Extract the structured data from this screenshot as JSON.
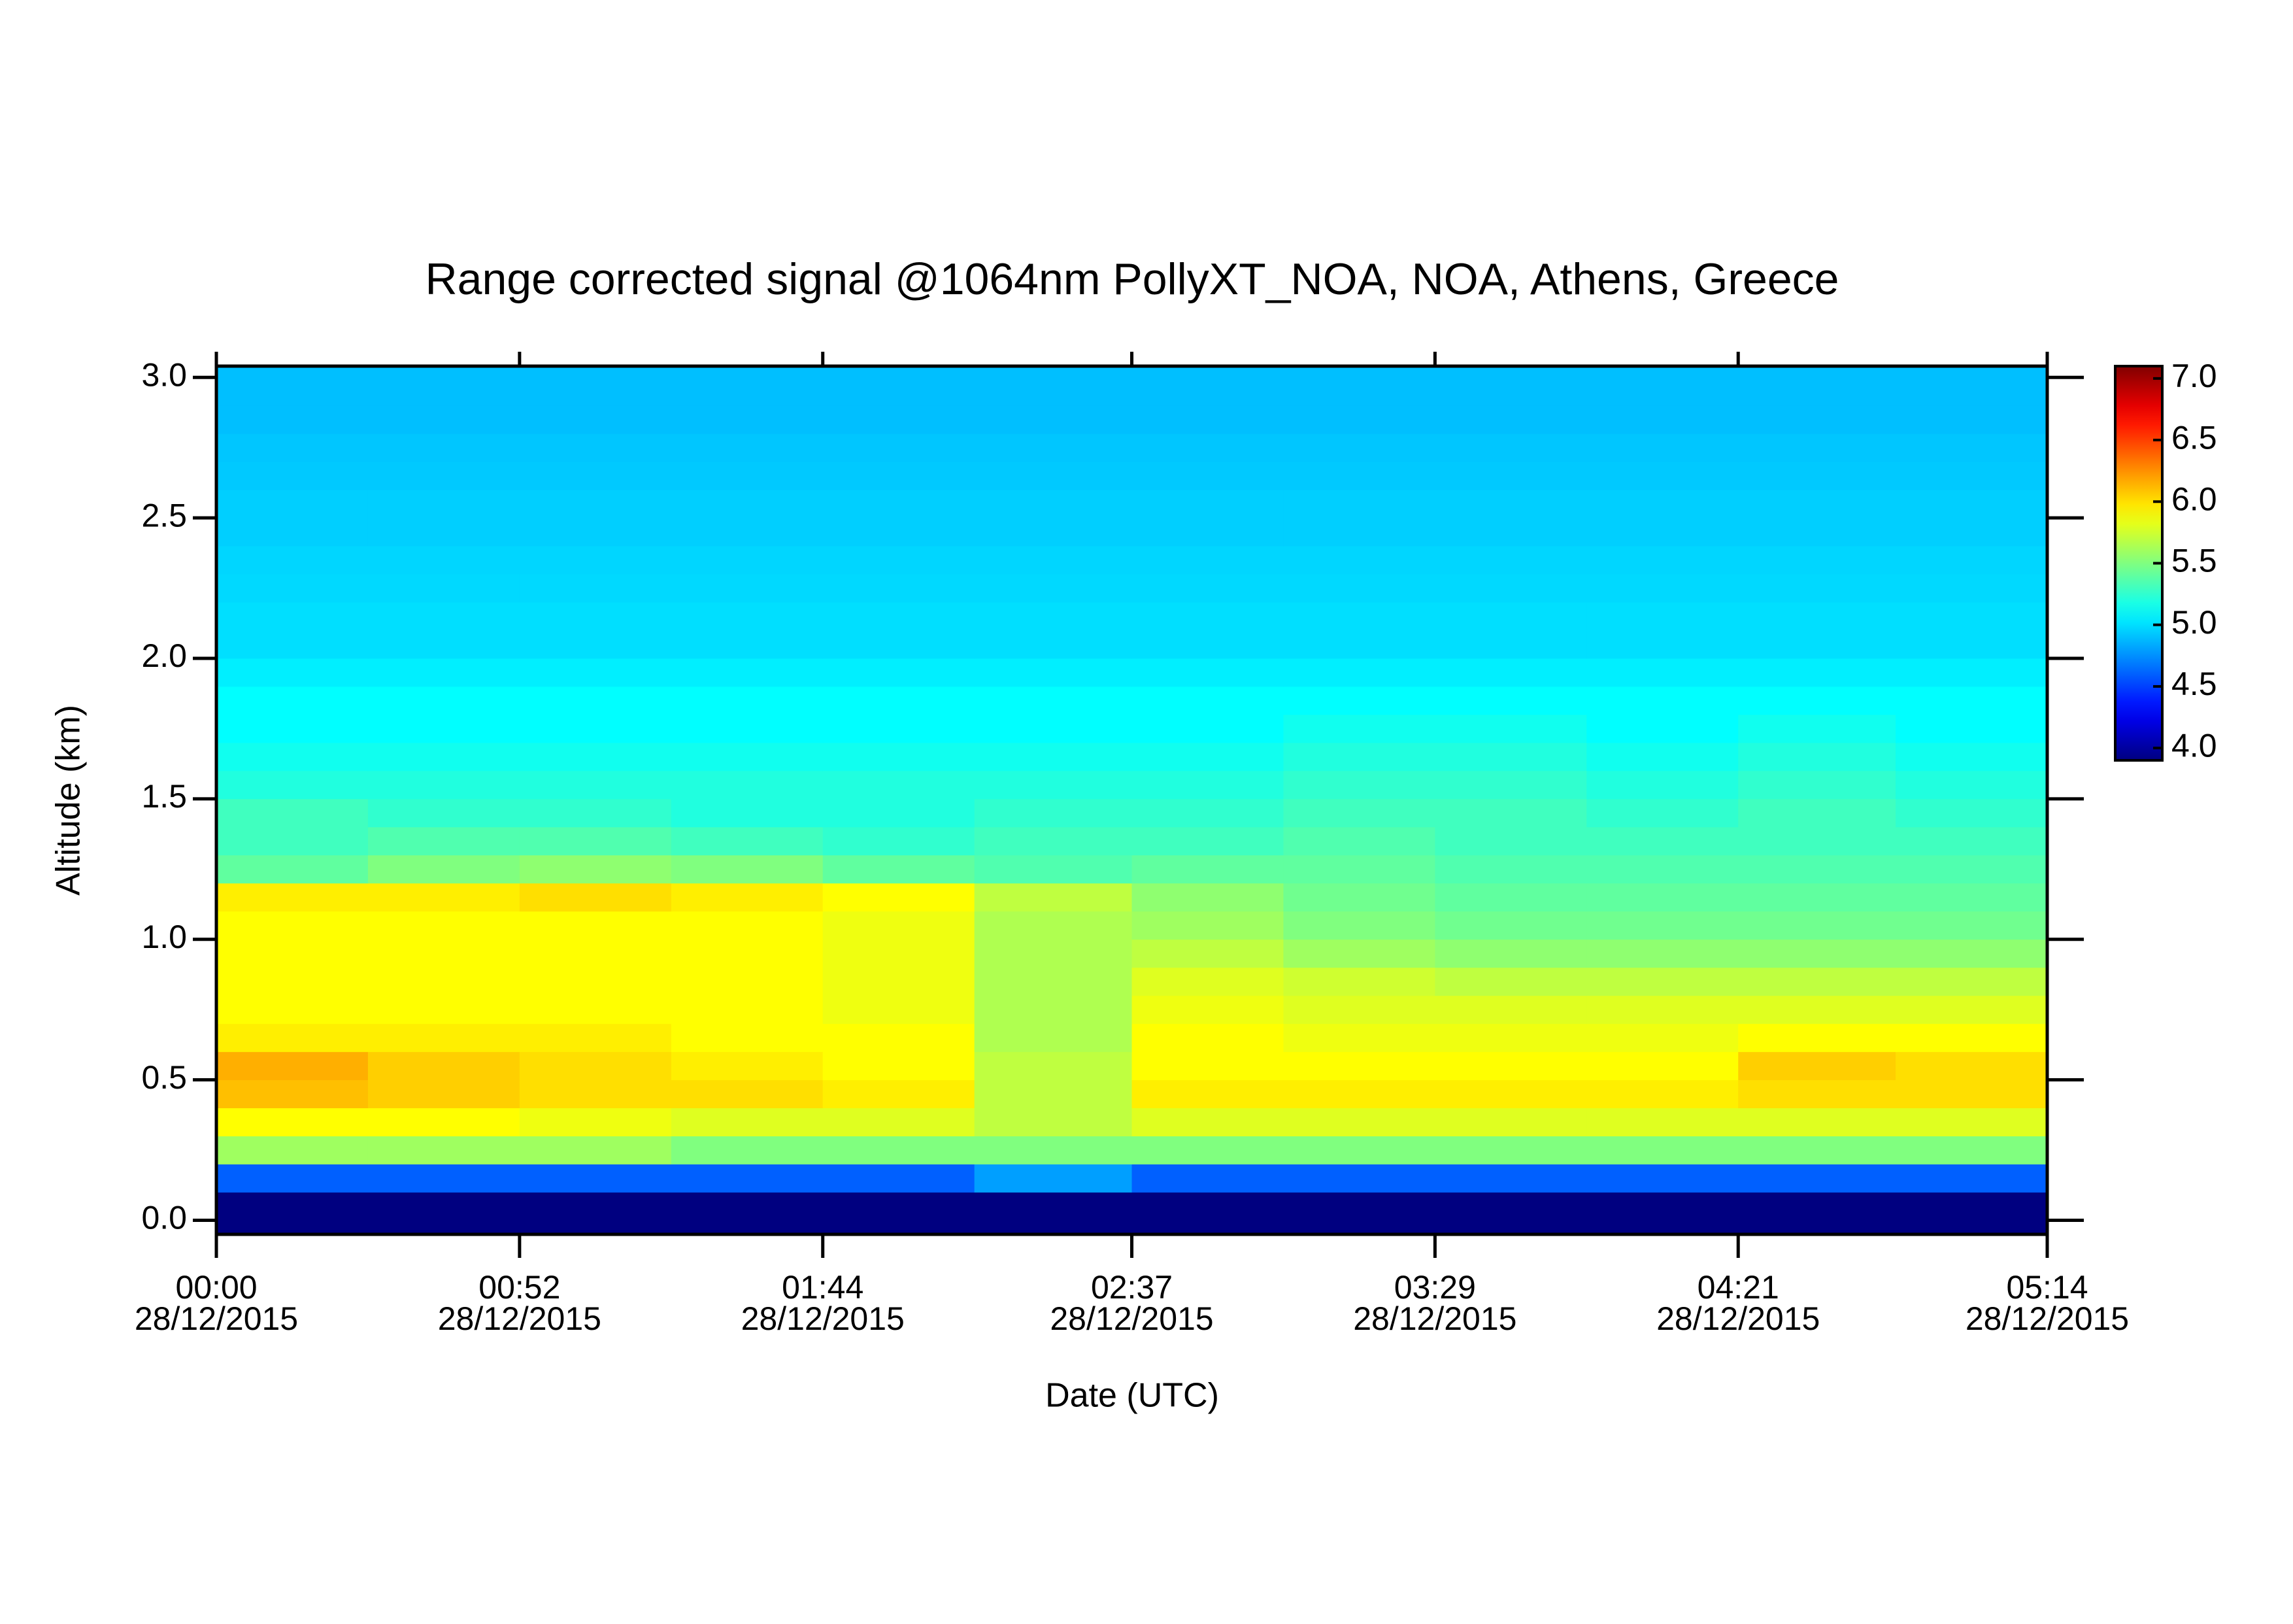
{
  "chart_data": {
    "type": "heatmap",
    "title": "Range corrected signal @1064nm  PollyXT_NOA, NOA, Athens, Greece",
    "xlabel": "Date (UTC)",
    "ylabel": "Altitude (km)",
    "colormap": "jet",
    "xlim": [
      0,
      314
    ],
    "xticks": [
      {
        "value": 0,
        "label": "00:00"
      },
      {
        "value": 52,
        "label": "00:52"
      },
      {
        "value": 104,
        "label": "01:44"
      },
      {
        "value": 157,
        "label": "02:37"
      },
      {
        "value": 209,
        "label": "03:29"
      },
      {
        "value": 261,
        "label": "04:21"
      },
      {
        "value": 314,
        "label": "05:14"
      }
    ],
    "xtick_dates": [
      "28/12/2015",
      "28/12/2015",
      "28/12/2015",
      "28/12/2015",
      "28/12/2015",
      "28/12/2015",
      "28/12/2015"
    ],
    "ylim": [
      -0.05,
      3.04
    ],
    "yticks": [
      {
        "value": 0,
        "label": "0.0"
      },
      0.5,
      {
        "value": 1,
        "label": "1.0"
      },
      1.5,
      {
        "value": 2,
        "label": "2.0"
      },
      2.5,
      {
        "value": 3,
        "label": "3.0"
      }
    ],
    "zlim": [
      3.9,
      7.1
    ],
    "zticks": [
      {
        "value": 4,
        "label": "4.0"
      },
      4.5,
      {
        "value": 5,
        "label": "5.0"
      },
      5.5,
      {
        "value": 6,
        "label": "6.0"
      },
      6.5,
      {
        "value": 7,
        "label": "7.0"
      }
    ],
    "x_edges": [
      0,
      26,
      52,
      78,
      104,
      130,
      157,
      183,
      209,
      235,
      261,
      288,
      314
    ],
    "y_edges": [
      -0.05,
      0.1,
      0.2,
      0.3,
      0.4,
      0.5,
      0.6,
      0.7,
      0.8,
      0.9,
      1.0,
      1.1,
      1.2,
      1.3,
      1.4,
      1.5,
      1.6,
      1.7,
      1.8,
      1.9,
      2.0,
      2.1,
      2.2,
      2.3,
      2.4,
      2.5,
      2.6,
      2.7,
      2.8,
      2.9,
      3.04
    ],
    "z": [
      [
        3.9,
        3.9,
        3.9,
        3.9,
        3.9,
        3.9,
        3.9,
        3.9,
        3.9,
        3.9,
        3.9,
        3.9
      ],
      [
        4.6,
        4.6,
        4.6,
        4.6,
        4.6,
        4.8,
        4.6,
        4.6,
        4.6,
        4.6,
        4.6,
        4.6
      ],
      [
        5.6,
        5.6,
        5.6,
        5.5,
        5.5,
        5.5,
        5.5,
        5.5,
        5.5,
        5.5,
        5.5,
        5.5
      ],
      [
        5.9,
        5.9,
        5.85,
        5.8,
        5.8,
        5.7,
        5.8,
        5.8,
        5.8,
        5.8,
        5.8,
        5.8
      ],
      [
        6.1,
        6.05,
        6.0,
        6.0,
        5.95,
        5.7,
        5.95,
        5.95,
        5.95,
        5.95,
        6.0,
        6.0
      ],
      [
        6.15,
        6.05,
        6.0,
        5.95,
        5.9,
        5.7,
        5.9,
        5.9,
        5.9,
        5.9,
        6.05,
        6.0
      ],
      [
        5.95,
        5.95,
        5.95,
        5.9,
        5.9,
        5.65,
        5.9,
        5.85,
        5.85,
        5.85,
        5.9,
        5.9
      ],
      [
        5.9,
        5.9,
        5.9,
        5.9,
        5.85,
        5.65,
        5.85,
        5.8,
        5.8,
        5.8,
        5.8,
        5.8
      ],
      [
        5.9,
        5.9,
        5.9,
        5.9,
        5.85,
        5.65,
        5.8,
        5.75,
        5.7,
        5.7,
        5.7,
        5.7
      ],
      [
        5.9,
        5.9,
        5.9,
        5.9,
        5.85,
        5.65,
        5.7,
        5.6,
        5.55,
        5.55,
        5.55,
        5.55
      ],
      [
        5.9,
        5.9,
        5.9,
        5.9,
        5.85,
        5.65,
        5.6,
        5.5,
        5.45,
        5.45,
        5.45,
        5.45
      ],
      [
        5.95,
        5.95,
        6.0,
        5.95,
        5.9,
        5.7,
        5.55,
        5.45,
        5.4,
        5.4,
        5.4,
        5.4
      ],
      [
        5.4,
        5.5,
        5.55,
        5.5,
        5.4,
        5.35,
        5.4,
        5.4,
        5.35,
        5.35,
        5.35,
        5.35
      ],
      [
        5.3,
        5.35,
        5.35,
        5.3,
        5.25,
        5.3,
        5.3,
        5.35,
        5.3,
        5.3,
        5.3,
        5.3
      ],
      [
        5.3,
        5.25,
        5.25,
        5.2,
        5.2,
        5.25,
        5.25,
        5.3,
        5.3,
        5.25,
        5.3,
        5.25
      ],
      [
        5.2,
        5.2,
        5.2,
        5.2,
        5.2,
        5.2,
        5.2,
        5.25,
        5.25,
        5.2,
        5.25,
        5.2
      ],
      [
        5.15,
        5.15,
        5.15,
        5.15,
        5.15,
        5.15,
        5.15,
        5.2,
        5.2,
        5.15,
        5.2,
        5.15
      ],
      [
        5.1,
        5.1,
        5.1,
        5.1,
        5.1,
        5.1,
        5.1,
        5.15,
        5.15,
        5.1,
        5.15,
        5.1
      ],
      [
        5.1,
        5.1,
        5.1,
        5.1,
        5.1,
        5.1,
        5.1,
        5.1,
        5.1,
        5.1,
        5.1,
        5.1
      ],
      [
        5.05,
        5.05,
        5.05,
        5.05,
        5.05,
        5.05,
        5.05,
        5.05,
        5.05,
        5.05,
        5.05,
        5.05
      ],
      [
        5.0,
        5.0,
        5.0,
        5.0,
        5.0,
        5.0,
        5.0,
        5.0,
        5.0,
        5.0,
        5.0,
        5.0
      ],
      [
        5.0,
        5.0,
        5.0,
        5.0,
        5.0,
        5.0,
        5.0,
        5.0,
        5.0,
        5.0,
        5.0,
        5.0
      ],
      [
        4.98,
        4.98,
        4.98,
        4.98,
        4.98,
        4.98,
        4.98,
        4.98,
        4.98,
        4.98,
        4.98,
        4.98
      ],
      [
        4.97,
        4.97,
        4.97,
        4.97,
        4.97,
        4.97,
        4.97,
        4.97,
        4.97,
        4.97,
        4.97,
        4.97
      ],
      [
        4.95,
        4.95,
        4.95,
        4.95,
        4.95,
        4.95,
        4.95,
        4.95,
        4.95,
        4.95,
        4.95,
        4.95
      ],
      [
        4.95,
        4.95,
        4.95,
        4.95,
        4.95,
        4.95,
        4.95,
        4.95,
        4.95,
        4.95,
        4.95,
        4.95
      ],
      [
        4.93,
        4.93,
        4.93,
        4.93,
        4.93,
        4.93,
        4.93,
        4.93,
        4.93,
        4.93,
        4.93,
        4.93
      ],
      [
        4.92,
        4.92,
        4.92,
        4.92,
        4.92,
        4.92,
        4.92,
        4.92,
        4.92,
        4.92,
        4.92,
        4.92
      ],
      [
        4.9,
        4.9,
        4.9,
        4.9,
        4.9,
        4.9,
        4.9,
        4.9,
        4.9,
        4.9,
        4.9,
        4.9
      ],
      [
        4.9,
        4.9,
        4.9,
        4.9,
        4.9,
        4.9,
        4.9,
        4.9,
        4.9,
        4.9,
        4.9,
        4.9
      ]
    ]
  }
}
